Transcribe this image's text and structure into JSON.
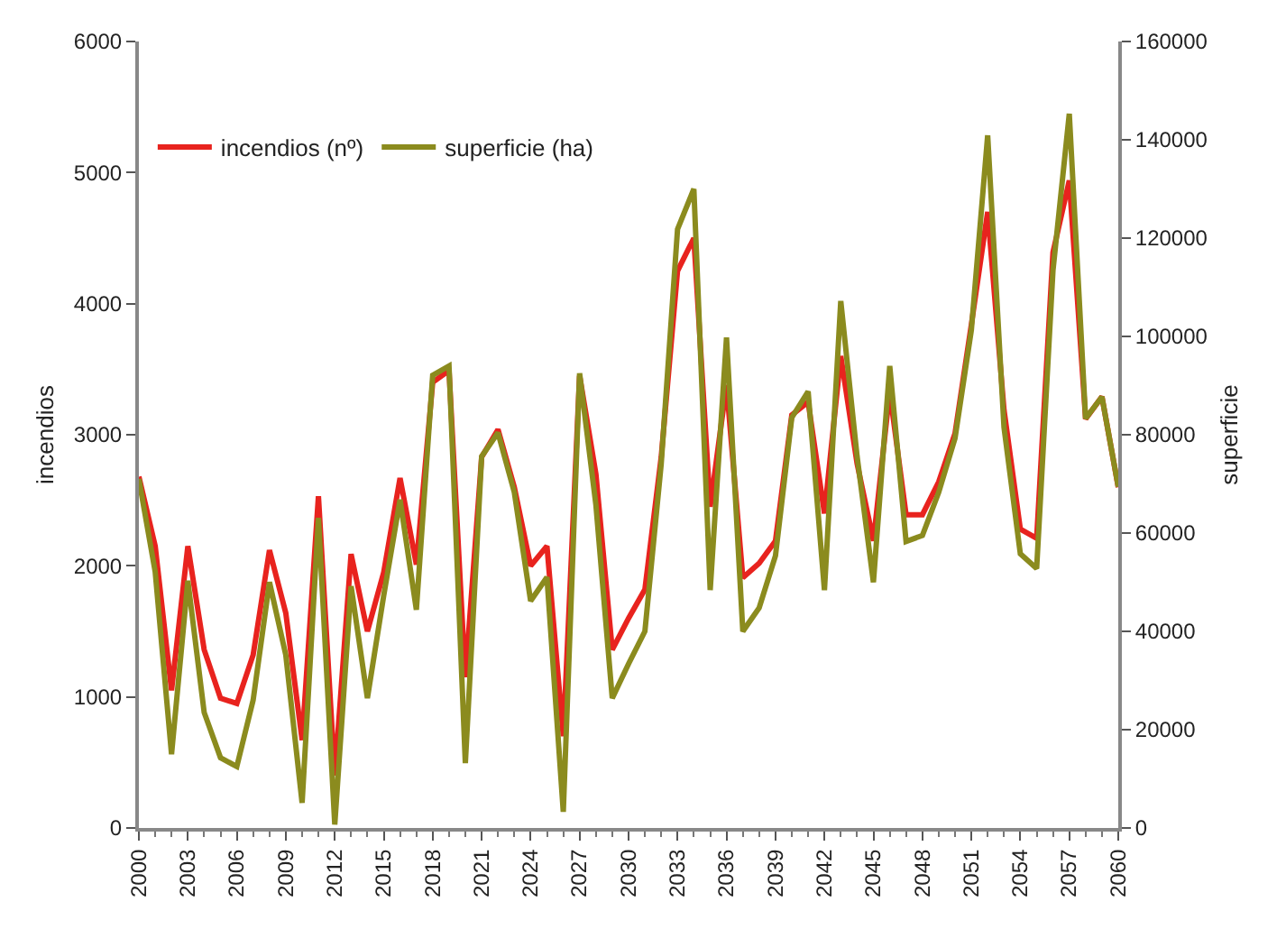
{
  "chart_data": {
    "type": "line",
    "ylabel": "incendios",
    "y2label": "superficie",
    "x": [
      2000,
      2001,
      2002,
      2003,
      2004,
      2005,
      2006,
      2007,
      2008,
      2009,
      2010,
      2011,
      2012,
      2013,
      2014,
      2015,
      2016,
      2017,
      2018,
      2019,
      2020,
      2021,
      2022,
      2023,
      2024,
      2025,
      2026,
      2027,
      2028,
      2029,
      2030,
      2031,
      2032,
      2033,
      2034,
      2035,
      2036,
      2037,
      2038,
      2039,
      2040,
      2041,
      2042,
      2043,
      2044,
      2045,
      2046,
      2047,
      2048,
      2049,
      2050,
      2051,
      2052,
      2053,
      2054,
      2055,
      2056,
      2057,
      2058,
      2059,
      2060
    ],
    "series": [
      {
        "name": "incendios (nº)",
        "color": "#e8231e",
        "values": [
          2680,
          2150,
          1050,
          2150,
          1360,
          990,
          950,
          1320,
          2120,
          1640,
          670,
          2530,
          400,
          2090,
          1500,
          1950,
          2670,
          2010,
          3400,
          3490,
          1150,
          2830,
          3040,
          2600,
          2000,
          2150,
          700,
          3450,
          2700,
          1360,
          1600,
          1820,
          2830,
          4250,
          4500,
          2450,
          3380,
          1910,
          2020,
          2190,
          3150,
          3250,
          2400,
          3600,
          2780,
          2190,
          3330,
          2390,
          2390,
          2640,
          3010,
          3840,
          4700,
          3190,
          2280,
          2210,
          4390,
          4940,
          3120,
          3290,
          2600
        ]
      },
      {
        "name": "superficie (ha)",
        "color": "#8b8b1e",
        "axis": "y2",
        "values": [
          71000,
          52100,
          15000,
          50300,
          23500,
          14300,
          12500,
          26000,
          50000,
          35200,
          5100,
          63100,
          700,
          49200,
          26400,
          47300,
          66800,
          44400,
          92100,
          94000,
          13200,
          75600,
          80400,
          68300,
          46200,
          51000,
          3300,
          92500,
          65700,
          26400,
          33400,
          40000,
          74100,
          121800,
          130000,
          48400,
          99800,
          40000,
          44800,
          55400,
          83500,
          88800,
          48400,
          107200,
          75600,
          50000,
          94000,
          58300,
          59500,
          68300,
          79300,
          101300,
          140900,
          81500,
          55800,
          52800,
          113400,
          145300,
          83300,
          87700,
          69400
        ]
      }
    ],
    "xlim": [
      2000,
      2060
    ],
    "xticks": [
      2000,
      2003,
      2006,
      2009,
      2012,
      2015,
      2018,
      2021,
      2024,
      2027,
      2030,
      2033,
      2036,
      2039,
      2042,
      2045,
      2048,
      2051,
      2054,
      2057,
      2060
    ],
    "ylim": [
      0,
      6000
    ],
    "yticks": [
      0,
      1000,
      2000,
      3000,
      4000,
      5000,
      6000
    ],
    "y2lim": [
      0,
      160000
    ],
    "y2ticks": [
      0,
      20000,
      40000,
      60000,
      80000,
      100000,
      120000,
      140000,
      160000
    ],
    "legend": "top left",
    "marker": "none",
    "line_style": "solid"
  }
}
